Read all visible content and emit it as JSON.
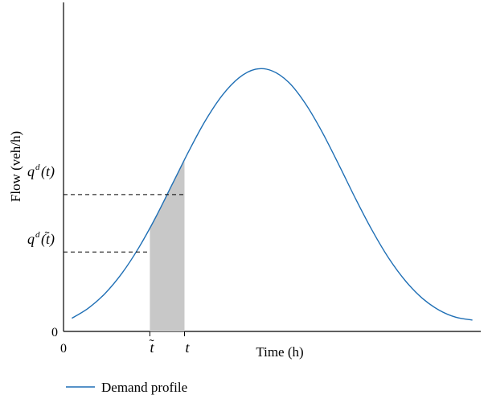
{
  "chart_data": {
    "type": "line",
    "title": "",
    "xlabel": "Time (h)",
    "ylabel": "Flow (veh/h)",
    "x_origin_label": "0",
    "y_origin_label": "0",
    "xlim": [
      0,
      1
    ],
    "ylim": [
      0,
      1
    ],
    "grid": false,
    "legend_position": "bottom-left",
    "colors": {
      "curve": "#1f6fb5",
      "shade": "#c8c8c8"
    },
    "series": [
      {
        "name": "Demand profile",
        "x": [
          0.02,
          0.06,
          0.1,
          0.14,
          0.18,
          0.22,
          0.26,
          0.3,
          0.34,
          0.38,
          0.42,
          0.46,
          0.5,
          0.54,
          0.58,
          0.62,
          0.66,
          0.7,
          0.74,
          0.78,
          0.82,
          0.86,
          0.9,
          0.94,
          0.98
        ],
        "y": [
          0.05,
          0.089,
          0.145,
          0.221,
          0.317,
          0.431,
          0.557,
          0.684,
          0.801,
          0.896,
          0.963,
          0.996,
          0.99,
          0.946,
          0.865,
          0.757,
          0.633,
          0.504,
          0.383,
          0.277,
          0.191,
          0.126,
          0.081,
          0.054,
          0.043
        ]
      }
    ],
    "marked_x": [
      {
        "label": "̃t",
        "symbol": "t",
        "tilde": true,
        "x": 0.207
      },
      {
        "label": "t",
        "symbol": "t",
        "tilde": false,
        "x": 0.29
      }
    ],
    "marked_y": [
      {
        "base": "q",
        "sup": "d",
        "arg": "(t)",
        "arg_symbol": "t",
        "tilde": false,
        "y": 0.52
      },
      {
        "base": "q",
        "sup": "d",
        "arg": "(̃t)",
        "arg_symbol": "t",
        "tilde": true,
        "y": 0.302
      }
    ]
  }
}
